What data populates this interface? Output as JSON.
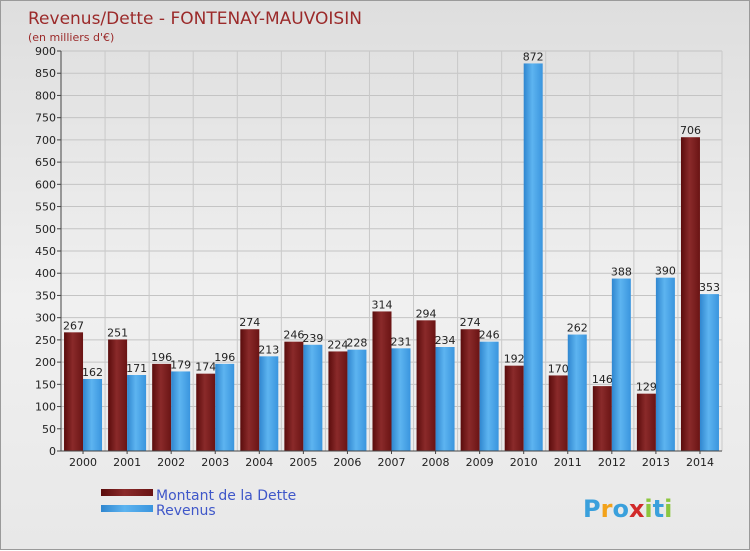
{
  "chart_data": {
    "type": "bar",
    "title": "Revenus/Dette - FONTENAY-MAUVOISIN",
    "subtitle": "(en milliers d'€)",
    "categories": [
      "2000",
      "2001",
      "2002",
      "2003",
      "2004",
      "2005",
      "2006",
      "2007",
      "2008",
      "2009",
      "2010",
      "2011",
      "2012",
      "2013",
      "2014"
    ],
    "series": [
      {
        "name": "Montant de la Dette",
        "color": "#7a1d1d",
        "values": [
          267,
          251,
          196,
          174,
          274,
          246,
          224,
          314,
          294,
          274,
          192,
          170,
          146,
          129,
          706
        ]
      },
      {
        "name": "Revenus",
        "color": "#3d9ce6",
        "values": [
          162,
          171,
          179,
          196,
          213,
          239,
          228,
          231,
          234,
          246,
          872,
          262,
          388,
          390,
          353
        ]
      }
    ],
    "ylim": [
      0,
      900
    ],
    "yticks": [
      0,
      50,
      100,
      150,
      200,
      250,
      300,
      350,
      400,
      450,
      500,
      550,
      600,
      650,
      700,
      750,
      800,
      850,
      900
    ],
    "grid": true,
    "legend_position": "bottom-left"
  },
  "logo": {
    "text": "Proxiti",
    "letters": [
      "P",
      "r",
      "o",
      "x",
      "i",
      "t",
      "i"
    ],
    "colors": [
      "#3aa0dc",
      "#f2a21a",
      "#3aa0dc",
      "#d12a2a",
      "#8cc63f",
      "#3aa0dc",
      "#8cc63f"
    ]
  }
}
